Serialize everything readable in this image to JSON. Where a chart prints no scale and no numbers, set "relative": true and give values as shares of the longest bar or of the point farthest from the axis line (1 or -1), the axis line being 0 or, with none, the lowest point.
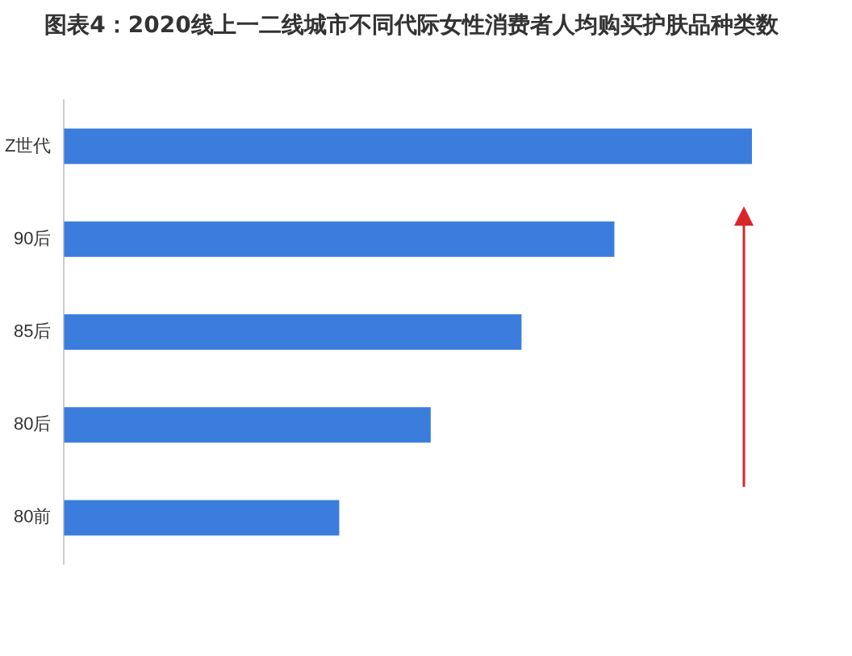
{
  "chart_data": {
    "type": "bar",
    "orientation": "horizontal",
    "relative": true,
    "title": "图表4：2020线上一二线城市不同代际女性消费者人均购买护肤品种类数",
    "categories": [
      "Z世代",
      "90后",
      "85后",
      "80后",
      "80前"
    ],
    "values": [
      1,
      0.8,
      0.665,
      0.533,
      0.4
    ],
    "color": "#3b7ddd"
  }
}
